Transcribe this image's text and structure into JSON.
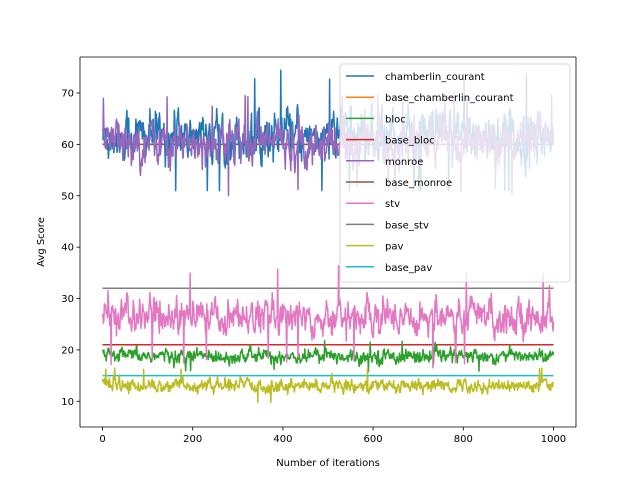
{
  "chart_data": {
    "type": "line",
    "title": "",
    "xlabel": "Number of iterations",
    "ylabel": "Avg Score",
    "xlim": [
      -50,
      1050
    ],
    "ylim": [
      5,
      77
    ],
    "x_ticks": [
      0,
      200,
      400,
      600,
      800,
      1000
    ],
    "y_ticks": [
      10,
      20,
      30,
      40,
      50,
      60,
      70
    ],
    "grid": false,
    "legend_position": "top-right",
    "n_points": 1000,
    "series": [
      {
        "name": "chamberlin_courant",
        "color": "#1f77b4",
        "kind": "noisy",
        "mean": 61.5,
        "amplitude": 4.5,
        "x_start": 0,
        "x_end": 1000,
        "min": 51,
        "max": 74.5
      },
      {
        "name": "base_chamberlin_courant",
        "color": "#ff7f0e",
        "kind": "constant",
        "value": 60
      },
      {
        "name": "bloc",
        "color": "#2ca02c",
        "kind": "noisy",
        "mean": 18.8,
        "amplitude": 1.3,
        "x_start": 0,
        "x_end": 1000,
        "min": 15,
        "max": 22
      },
      {
        "name": "base_bloc",
        "color": "#d62728",
        "kind": "constant",
        "value": 21
      },
      {
        "name": "monroe",
        "color": "#9467bd",
        "kind": "noisy",
        "mean": 60.5,
        "amplitude": 4.0,
        "x_start": 0,
        "x_end": 1000,
        "min": 48,
        "max": 71
      },
      {
        "name": "base_monroe",
        "color": "#8c564b",
        "kind": "constant",
        "value": 60
      },
      {
        "name": "stv",
        "color": "#e377c2",
        "kind": "noisy",
        "mean": 26.5,
        "amplitude": 3.2,
        "x_start": 0,
        "x_end": 1000,
        "min": 16,
        "max": 36.5
      },
      {
        "name": "base_stv",
        "color": "#7f7f7f",
        "kind": "constant",
        "value": 32
      },
      {
        "name": "pav",
        "color": "#bcbd22",
        "kind": "noisy",
        "mean": 13.0,
        "amplitude": 1.2,
        "x_start": 0,
        "x_end": 1000,
        "min": 8.5,
        "max": 16.5
      },
      {
        "name": "base_pav",
        "color": "#17becf",
        "kind": "constant",
        "value": 15
      }
    ]
  }
}
